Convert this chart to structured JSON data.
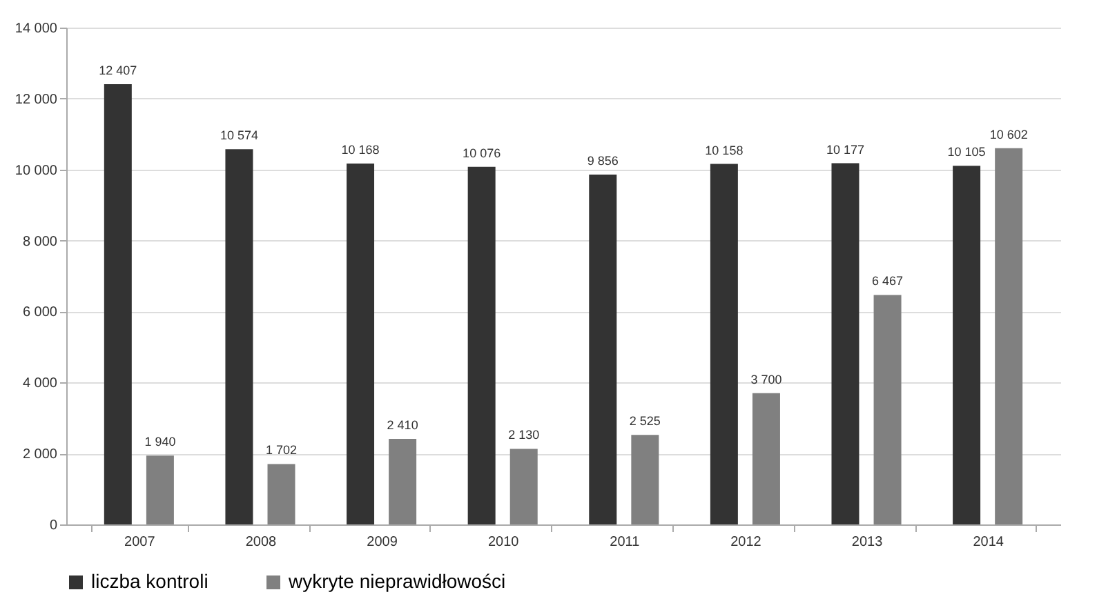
{
  "chart_data": {
    "type": "bar",
    "categories": [
      "2007",
      "2008",
      "2009",
      "2010",
      "2011",
      "2012",
      "2013",
      "2014"
    ],
    "series": [
      {
        "name": "liczba kontroli",
        "color": "#333333",
        "values": [
          12407,
          10574,
          10168,
          10076,
          9856,
          10158,
          10177,
          10105
        ],
        "value_labels": [
          "12 407",
          "10 574",
          "10 168",
          "10 076",
          "9 856",
          "10 158",
          "10 177",
          "10 105"
        ]
      },
      {
        "name": "wykryte nieprawidłowości",
        "color": "#808080",
        "values": [
          1940,
          1702,
          2410,
          2130,
          2525,
          3700,
          6467,
          10602
        ],
        "value_labels": [
          "1 940",
          "1 702",
          "2 410",
          "2 130",
          "2 525",
          "3 700",
          "6 467",
          "10 602"
        ]
      }
    ],
    "ylim": [
      0,
      14000
    ],
    "yticks": [
      0,
      {
        "value": 2000,
        "label": "2 000"
      },
      {
        "value": 4000,
        "label": "4 000"
      },
      {
        "value": 6000,
        "label": "6 000"
      },
      {
        "value": 8000,
        "label": "8 000"
      },
      {
        "value": 10000,
        "label": "10 000"
      },
      {
        "value": 12000,
        "label": "12 000"
      },
      {
        "value": 14000,
        "label": "14 000"
      }
    ],
    "grid": "y",
    "legend": "bottom"
  }
}
